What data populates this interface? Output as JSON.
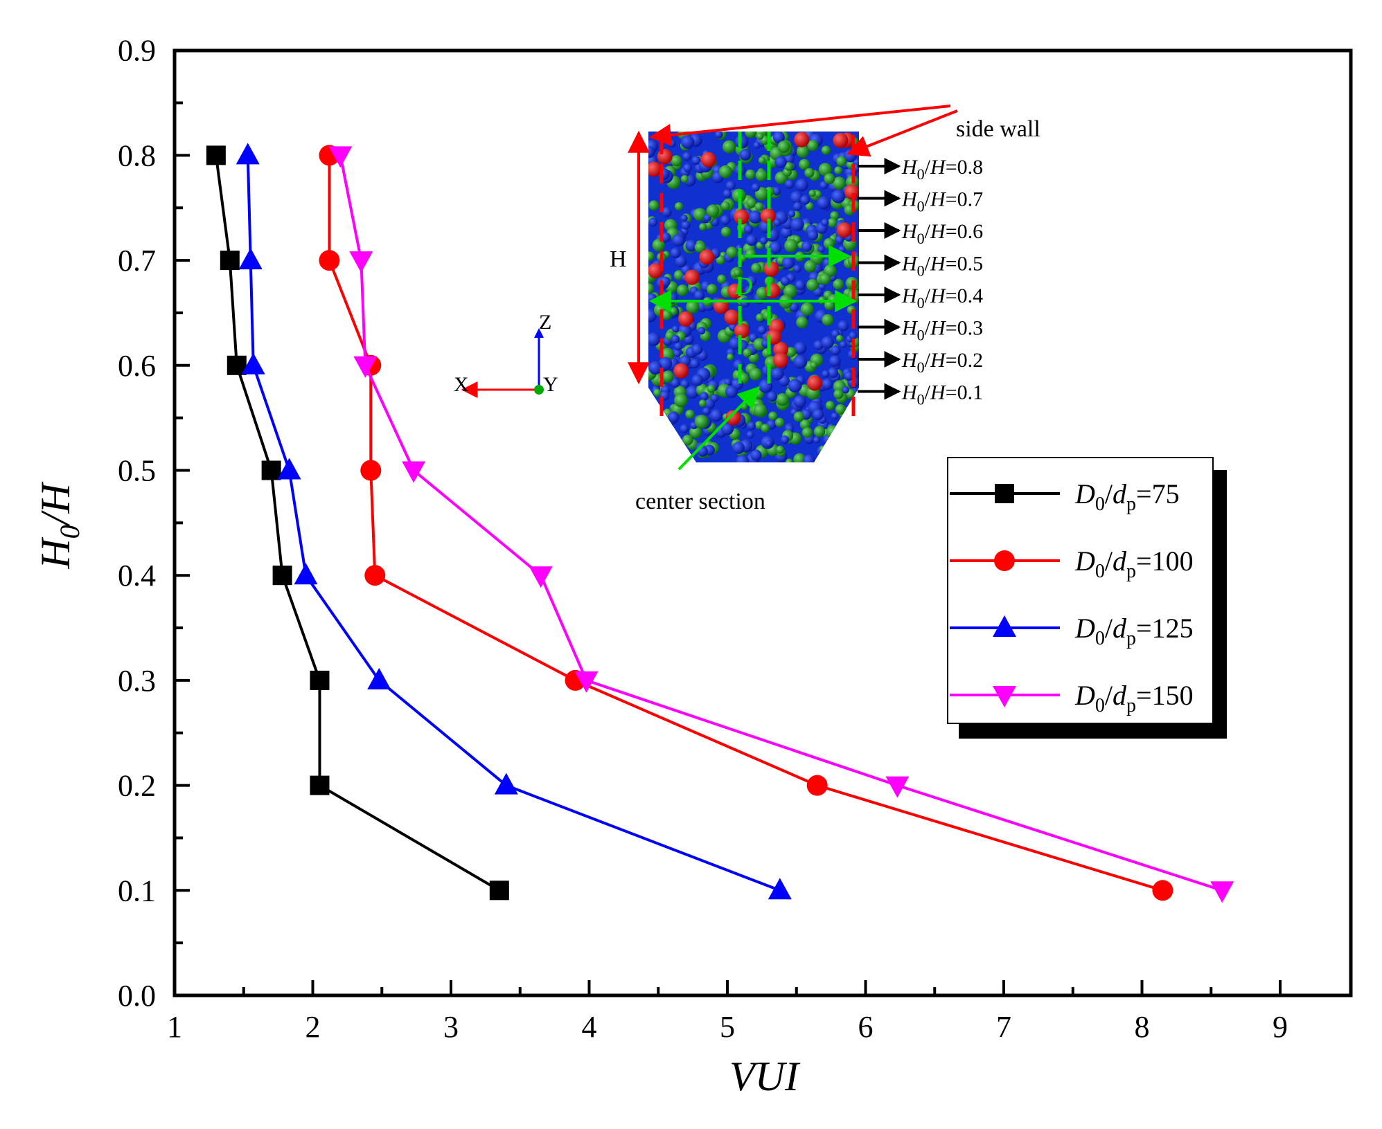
{
  "chart_data": {
    "type": "line",
    "title": "",
    "xlabel": "VUI",
    "ylabel": "H0/H",
    "xlim": [
      1,
      9.5
    ],
    "ylim": [
      0,
      0.9
    ],
    "xticks": [
      "1",
      "2",
      "3",
      "4",
      "5",
      "6",
      "7",
      "8",
      "9"
    ],
    "yticks": [
      "0.0",
      "0.1",
      "0.2",
      "0.3",
      "0.4",
      "0.5",
      "0.6",
      "0.7",
      "0.8",
      "0.9"
    ],
    "legend_position": "right-middle",
    "series": [
      {
        "name": "D0/dp=75",
        "ratio": "75",
        "color": "#000000",
        "marker": "square",
        "points": [
          [
            1.3,
            0.8
          ],
          [
            1.4,
            0.7
          ],
          [
            1.45,
            0.6
          ],
          [
            1.7,
            0.5
          ],
          [
            1.78,
            0.4
          ],
          [
            2.05,
            0.3
          ],
          [
            2.05,
            0.2
          ],
          [
            3.35,
            0.1
          ]
        ]
      },
      {
        "name": "D0/dp=100",
        "ratio": "100",
        "color": "#ff0000",
        "marker": "circle",
        "points": [
          [
            2.12,
            0.8
          ],
          [
            2.12,
            0.7
          ],
          [
            2.42,
            0.6
          ],
          [
            2.42,
            0.5
          ],
          [
            2.45,
            0.4
          ],
          [
            3.9,
            0.3
          ],
          [
            5.65,
            0.2
          ],
          [
            8.15,
            0.1
          ]
        ]
      },
      {
        "name": "D0/dp=125",
        "ratio": "125",
        "color": "#0000ff",
        "marker": "triangle-up",
        "points": [
          [
            1.53,
            0.8
          ],
          [
            1.55,
            0.7
          ],
          [
            1.57,
            0.6
          ],
          [
            1.83,
            0.5
          ],
          [
            1.95,
            0.4
          ],
          [
            2.48,
            0.3
          ],
          [
            3.4,
            0.2
          ],
          [
            5.38,
            0.1
          ]
        ]
      },
      {
        "name": "D0/dp=150",
        "ratio": "150",
        "color": "#ff00ff",
        "marker": "triangle-down",
        "points": [
          [
            2.2,
            0.8
          ],
          [
            2.35,
            0.7
          ],
          [
            2.38,
            0.6
          ],
          [
            2.73,
            0.5
          ],
          [
            3.65,
            0.4
          ],
          [
            3.98,
            0.3
          ],
          [
            6.23,
            0.2
          ],
          [
            8.58,
            0.1
          ]
        ]
      }
    ],
    "inset": {
      "side_wall_label": "side wall",
      "center_section_label": "center section",
      "height_label": "H",
      "diameter_label": "D",
      "axis_labels": {
        "x": "X",
        "y": "Y",
        "z": "Z"
      },
      "level_labels": [
        "H0/H=0.8",
        "H0/H=0.7",
        "H0/H=0.6",
        "H0/H=0.5",
        "H0/H=0.4",
        "H0/H=0.3",
        "H0/H=0.2",
        "H0/H=0.1"
      ]
    }
  }
}
